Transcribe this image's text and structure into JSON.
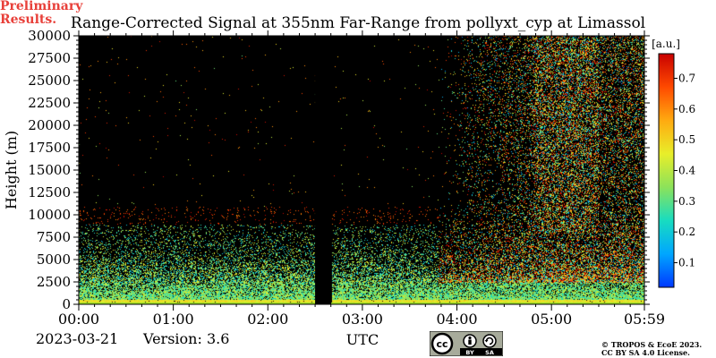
{
  "title": "Range-Corrected Signal at 355nm Far-Range from pollyxt_cyp at Limassol",
  "footer": {
    "date": "2023-03-21",
    "version": "Version: 3.6",
    "preliminary": [
      "Preliminary",
      "Results."
    ],
    "copyright": [
      "© TROPOS & EcoE 2023.",
      "CC BY SA 4.0 License."
    ],
    "license_badge": {
      "cc": "cc",
      "labels": [
        "BY",
        "SA"
      ]
    }
  },
  "chart_data": {
    "type": "heatmap",
    "title": "Range-Corrected Signal at 355nm Far-Range from pollyxt_cyp at Limassol",
    "xlabel": "UTC",
    "ylabel": "Height (m)",
    "x_ticks": [
      "00:00",
      "01:00",
      "02:00",
      "03:00",
      "04:00",
      "05:00",
      "05:59"
    ],
    "x_tick_values_hours": [
      0,
      1,
      2,
      3,
      4,
      5,
      5.983
    ],
    "xlim_hours": [
      0,
      5.983
    ],
    "y_ticks": [
      0,
      2500,
      5000,
      7500,
      10000,
      12500,
      15000,
      17500,
      20000,
      22500,
      25000,
      27500,
      30000
    ],
    "ylim": [
      0,
      30000
    ],
    "colorbar": {
      "label": "[a.u.]",
      "ticks": [
        0.1,
        0.2,
        0.3,
        0.4,
        0.5,
        0.6,
        0.7
      ],
      "range": [
        0.02,
        0.78
      ],
      "colormap": "jet"
    },
    "data_gap_hours": [
      2.5,
      2.67
    ],
    "colors": {
      "background": "#000000",
      "surface": "#9be22a",
      "colormap_stops": [
        "#0038ff",
        "#00a6ff",
        "#18dcc0",
        "#8ce25a",
        "#e8ee2a",
        "#ffaa10",
        "#ff4a00",
        "#c80000"
      ]
    }
  }
}
